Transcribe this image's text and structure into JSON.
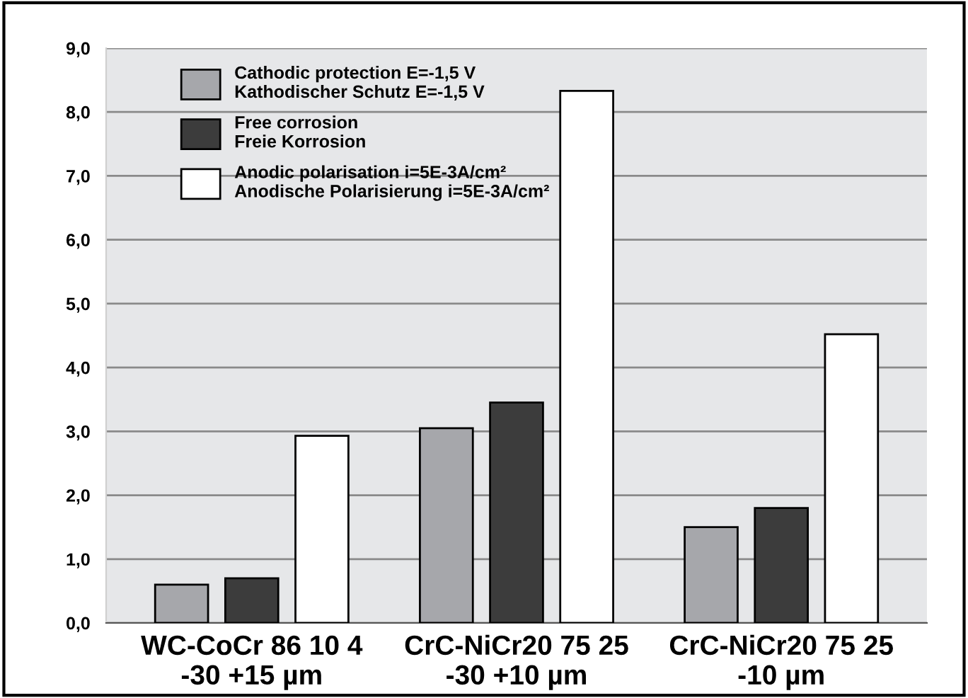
{
  "chart_data": {
    "type": "bar",
    "categories": [
      "WC-CoCr 86 10 4\n-30 +15 µm",
      "CrC-NiCr20 75 25\n-30 +10 µm",
      "CrC-NiCr20 75 25\n-10 µm"
    ],
    "series": [
      {
        "name": "Cathodic protection E=-1,5 V\nKathodischer Schutz E=-1,5 V",
        "color": "#a6a7ab",
        "values": [
          0.6,
          3.05,
          1.5
        ]
      },
      {
        "name": "Free corrosion\nFreie Korrosion",
        "color": "#3c3c3c",
        "values": [
          0.7,
          3.45,
          1.8
        ]
      },
      {
        "name": "Anodic polarisation i=5E-3A/cm²\nAnodische Polarisierung i=5E-3A/cm²",
        "color": "#ffffff",
        "values": [
          2.93,
          8.33,
          4.52
        ]
      }
    ],
    "ylim": [
      0,
      9
    ],
    "yticks": [
      {
        "value": 0,
        "label": "0,0"
      },
      {
        "value": 1,
        "label": "1,0"
      },
      {
        "value": 2,
        "label": "2,0"
      },
      {
        "value": 3,
        "label": "3,0"
      },
      {
        "value": 4,
        "label": "4,0"
      },
      {
        "value": 5,
        "label": "5,0"
      },
      {
        "value": 6,
        "label": "6,0"
      },
      {
        "value": 7,
        "label": "7,0"
      },
      {
        "value": 8,
        "label": "8,0"
      },
      {
        "value": 9,
        "label": "9,0"
      }
    ],
    "grid": "y",
    "legend": "top left"
  }
}
